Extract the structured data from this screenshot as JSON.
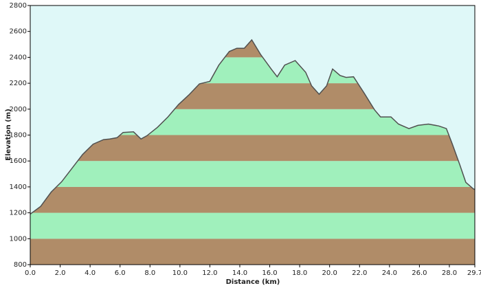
{
  "chart_data": {
    "type": "area",
    "x_label": "Distance  (km)",
    "y_label": "Elevation (m)",
    "x": [
      0,
      0.7,
      1.4,
      2.1,
      2.8,
      3.5,
      4.2,
      4.9,
      5.3,
      5.8,
      6.2,
      6.9,
      7.4,
      7.8,
      8.5,
      9.2,
      9.9,
      10.6,
      11.3,
      12.0,
      12.6,
      13.3,
      13.8,
      14.3,
      14.8,
      15.4,
      16.1,
      16.5,
      17.0,
      17.7,
      18.4,
      18.8,
      19.3,
      19.8,
      20.2,
      20.7,
      21.1,
      21.6,
      22.3,
      23.0,
      23.4,
      24.1,
      24.6,
      25.3,
      25.9,
      26.6,
      27.3,
      27.8,
      28.2,
      28.7,
      29.1,
      29.6,
      29.7
    ],
    "values": [
      1190,
      1250,
      1360,
      1440,
      1545,
      1650,
      1730,
      1765,
      1770,
      1780,
      1820,
      1825,
      1770,
      1795,
      1860,
      1940,
      2035,
      2110,
      2195,
      2215,
      2340,
      2445,
      2470,
      2470,
      2535,
      2420,
      2310,
      2250,
      2340,
      2375,
      2285,
      2180,
      2115,
      2180,
      2310,
      2260,
      2245,
      2250,
      2125,
      1995,
      1940,
      1940,
      1885,
      1850,
      1875,
      1885,
      1870,
      1850,
      1730,
      1570,
      1435,
      1385,
      1380
    ],
    "line_color": "#505050",
    "band_colors": [
      "#b08c68",
      "#a0f0bc"
    ],
    "background": "#dff8f8",
    "xlim": [
      0,
      29.7
    ],
    "xticks": [
      {
        "value": 0,
        "label": "0.0"
      },
      {
        "value": 2,
        "label": "2.0"
      },
      {
        "value": 4,
        "label": "4.0"
      },
      {
        "value": 6,
        "label": "6.0"
      },
      {
        "value": 8,
        "label": "8.0"
      },
      {
        "value": 10,
        "label": "10.0"
      },
      {
        "value": 12,
        "label": "12.0"
      },
      {
        "value": 14,
        "label": "14.0"
      },
      {
        "value": 16,
        "label": "16.0"
      },
      {
        "value": 18,
        "label": "18.0"
      },
      {
        "value": 20,
        "label": "20.0"
      },
      {
        "value": 22,
        "label": "22.0"
      },
      {
        "value": 24,
        "label": "24.0"
      },
      {
        "value": 26,
        "label": "26.0"
      },
      {
        "value": 28,
        "label": "28.0"
      },
      29.7
    ],
    "ylim": [
      800,
      2800
    ],
    "yticks": [
      800,
      1000,
      1200,
      1400,
      1600,
      1800,
      2000,
      2200,
      2400,
      2600,
      2800
    ]
  }
}
